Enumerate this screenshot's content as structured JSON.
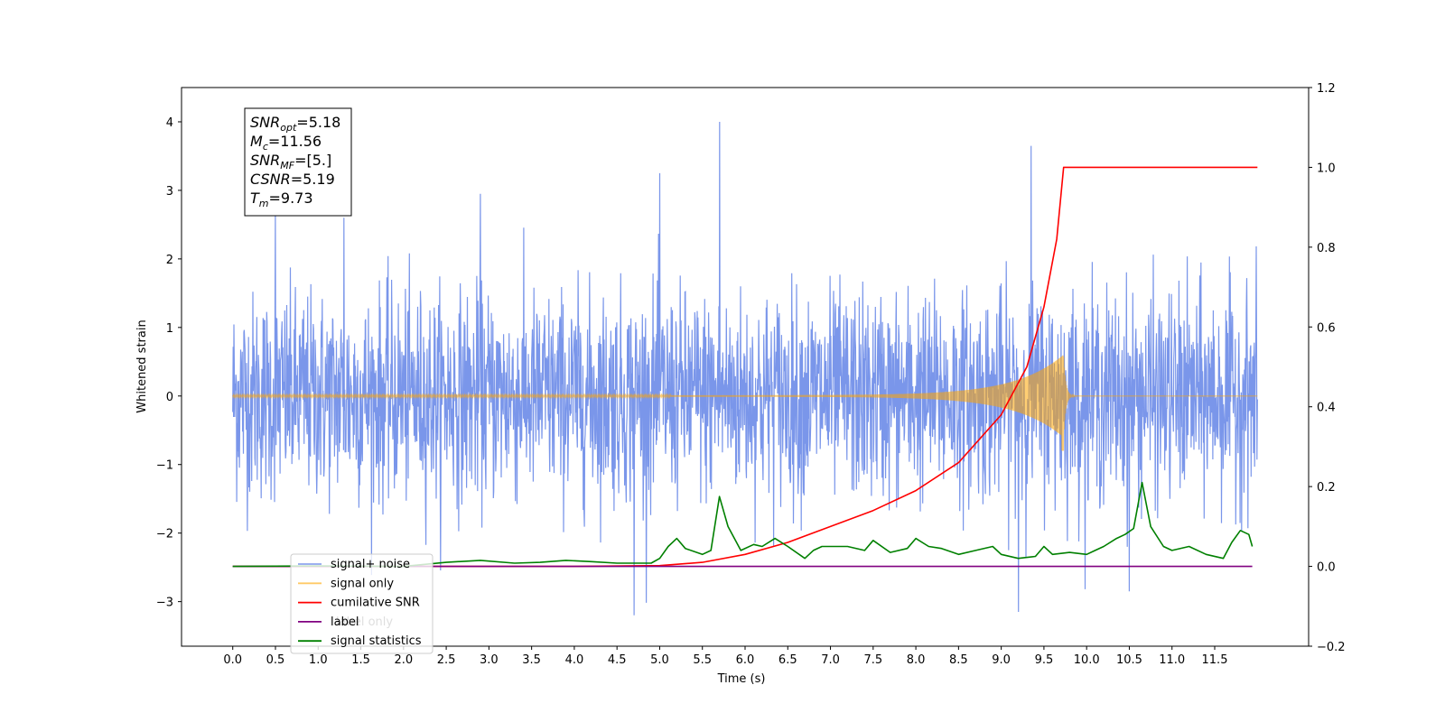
{
  "chart_data": {
    "type": "line",
    "xlabel": "Time (s)",
    "ylabel_left": "Whitened strain",
    "xlim": [
      -0.6,
      12.6
    ],
    "ylim_left": [
      -3.65,
      4.5
    ],
    "ylim_right": [
      -0.2,
      1.2
    ],
    "x_ticks": [
      "0.0",
      "0.5",
      "1.0",
      "1.5",
      "2.0",
      "2.5",
      "3.0",
      "3.5",
      "4.0",
      "4.5",
      "5.0",
      "5.5",
      "6.0",
      "6.5",
      "7.0",
      "7.5",
      "8.0",
      "8.5",
      "9.0",
      "9.5",
      "10.0",
      "10.5",
      "11.0",
      "11.5"
    ],
    "y_ticks_left": [
      "−3",
      "−2",
      "−1",
      "0",
      "1",
      "2",
      "3",
      "4"
    ],
    "y_ticks_right": [
      "−0.2",
      "0.0",
      "0.2",
      "0.4",
      "0.6",
      "0.8",
      "1.0",
      "1.2"
    ],
    "annotation": {
      "lines": [
        {
          "main": "SNR",
          "sub": "opt",
          "value": "=5.18"
        },
        {
          "main": "M",
          "sub": "c",
          "value": "=11.56"
        },
        {
          "main": "SNR",
          "sub": "MF",
          "value": "=[5.]"
        },
        {
          "main": "CSNR",
          "sub": "",
          "value": "=5.19"
        },
        {
          "main": "T",
          "sub": "m",
          "value": "=9.73"
        }
      ]
    },
    "legend": {
      "placement": "lower-left",
      "entries": [
        {
          "label": "signal+ noise",
          "color": "#4169e1"
        },
        {
          "label": "signal only",
          "color": "#ffa500"
        },
        {
          "label": "cumilative SNR",
          "color": "#ff0000"
        },
        {
          "label": "label",
          "color": "#800080"
        },
        {
          "label": "signal statistics",
          "color": "#008000"
        }
      ],
      "occluded_text": "label only"
    },
    "series": [
      {
        "name": "signal+ noise",
        "axis": "left",
        "color": "#4169e1",
        "t_range": [
          0.0,
          12.0
        ],
        "std": 0.75,
        "peaks": [
          [
            0.5,
            2.7
          ],
          [
            1.3,
            2.6
          ],
          [
            2.9,
            2.95
          ],
          [
            4.7,
            -3.25
          ],
          [
            5.0,
            3.25
          ],
          [
            5.7,
            4.1
          ],
          [
            9.2,
            -3.15
          ],
          [
            9.35,
            3.65
          ],
          [
            10.5,
            -2.85
          ]
        ]
      },
      {
        "name": "signal only",
        "axis": "left",
        "color": "#ffa500",
        "t_range": [
          0.0,
          12.0
        ],
        "merger_time": 9.73,
        "peak_amplitude": 0.6,
        "min_amplitude": -0.8
      },
      {
        "name": "cumilative SNR",
        "axis": "right",
        "color": "#ff0000",
        "x": [
          0.0,
          4.0,
          5.0,
          5.5,
          6.0,
          6.5,
          7.0,
          7.5,
          8.0,
          8.5,
          9.0,
          9.3,
          9.5,
          9.65,
          9.73,
          12.0
        ],
        "y": [
          0.0,
          0.0,
          0.002,
          0.01,
          0.03,
          0.06,
          0.1,
          0.14,
          0.19,
          0.26,
          0.38,
          0.5,
          0.65,
          0.82,
          1.0,
          1.0
        ]
      },
      {
        "name": "label",
        "axis": "right",
        "color": "#800080",
        "x": [
          0.0,
          11.94
        ],
        "y": [
          0.0,
          0.0
        ]
      },
      {
        "name": "signal statistics",
        "axis": "right",
        "color": "#008000",
        "x": [
          0.0,
          1.0,
          2.0,
          2.5,
          2.9,
          3.3,
          3.6,
          3.9,
          4.2,
          4.5,
          4.9,
          5.0,
          5.1,
          5.2,
          5.3,
          5.5,
          5.6,
          5.7,
          5.8,
          5.95,
          6.1,
          6.2,
          6.35,
          6.5,
          6.7,
          6.8,
          6.9,
          7.0,
          7.2,
          7.4,
          7.5,
          7.7,
          7.9,
          8.0,
          8.15,
          8.3,
          8.5,
          8.7,
          8.9,
          9.0,
          9.2,
          9.4,
          9.5,
          9.6,
          9.8,
          10.0,
          10.1,
          10.2,
          10.35,
          10.45,
          10.55,
          10.65,
          10.75,
          10.9,
          11.0,
          11.2,
          11.4,
          11.6,
          11.7,
          11.8,
          11.9,
          11.94
        ],
        "y": [
          0.0,
          0.001,
          0.0,
          0.01,
          0.015,
          0.008,
          0.01,
          0.015,
          0.012,
          0.008,
          0.008,
          0.02,
          0.05,
          0.07,
          0.045,
          0.03,
          0.04,
          0.175,
          0.1,
          0.04,
          0.055,
          0.05,
          0.07,
          0.05,
          0.02,
          0.04,
          0.05,
          0.05,
          0.05,
          0.04,
          0.065,
          0.035,
          0.045,
          0.07,
          0.05,
          0.045,
          0.03,
          0.04,
          0.05,
          0.03,
          0.02,
          0.025,
          0.05,
          0.03,
          0.035,
          0.03,
          0.04,
          0.05,
          0.07,
          0.08,
          0.095,
          0.21,
          0.1,
          0.05,
          0.04,
          0.05,
          0.03,
          0.02,
          0.06,
          0.09,
          0.08,
          0.05
        ]
      }
    ]
  }
}
